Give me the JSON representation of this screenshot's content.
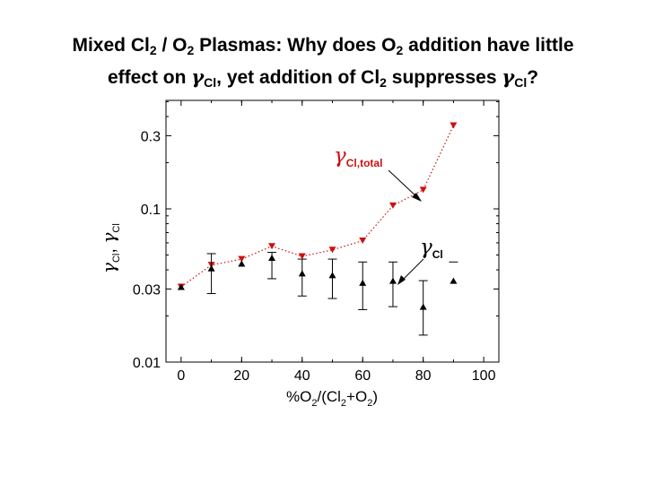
{
  "title": {
    "line1": {
      "a": "Mixed Cl",
      "b": "2",
      "c": " / O",
      "d": "2",
      "e": " Plasmas: Why does O",
      "f": "2",
      "g": " addition have little"
    },
    "line2": {
      "a": "effect on ",
      "b": "γ",
      "c": "Cl",
      "d": ", yet addition of Cl",
      "e": "2",
      "f": " suppresses ",
      "g": "γ",
      "h": "Cl",
      "i": "?"
    }
  },
  "chart_data": {
    "type": "scatter",
    "xlabel": {
      "a": "%O",
      "b": "2",
      "c": "/(Cl",
      "d": "2",
      "e": "+O",
      "f": "2",
      "g": ")"
    },
    "ylabel": {
      "g1": "γ",
      "s1": "Cl",
      "sep": ", ",
      "g2": "γ",
      "s2": "Cl"
    },
    "xlim": [
      -5,
      105
    ],
    "ylim": [
      0.01,
      0.51
    ],
    "yscale": "log",
    "x_ticks": [
      0,
      20,
      40,
      60,
      80,
      100
    ],
    "y_ticks": [
      0.01,
      0.03,
      0.1,
      0.3
    ],
    "x_tick_labels": [
      "0",
      "20",
      "40",
      "60",
      "80",
      "100"
    ],
    "y_tick_labels": [
      "0.01",
      "0.03",
      "0.1",
      "0.3"
    ],
    "series": [
      {
        "name": "gamma_Cl_total",
        "label": {
          "g": "γ",
          "s": "Cl,total"
        },
        "color": "#cc1111",
        "marker": "triangle-down",
        "linestyle": "dotted",
        "x": [
          0,
          10,
          20,
          30,
          40,
          50,
          60,
          70,
          80,
          90
        ],
        "y": [
          0.031,
          0.043,
          0.047,
          0.057,
          0.049,
          0.054,
          0.062,
          0.105,
          0.133,
          0.35
        ]
      },
      {
        "name": "gamma_Cl",
        "label": {
          "g": "γ",
          "s": "Cl"
        },
        "color": "#000000",
        "marker": "triangle-up",
        "x": [
          0,
          10,
          20,
          30,
          40,
          50,
          60,
          70,
          80,
          90
        ],
        "y": [
          0.031,
          0.041,
          0.044,
          0.048,
          0.038,
          0.037,
          0.033,
          0.034,
          0.023,
          0.034
        ],
        "err_low": [
          null,
          0.028,
          null,
          0.035,
          0.027,
          0.026,
          0.022,
          0.023,
          0.015,
          null
        ],
        "err_high": [
          null,
          0.051,
          null,
          0.052,
          0.047,
          0.047,
          0.045,
          0.045,
          0.034,
          0.045
        ]
      }
    ]
  }
}
